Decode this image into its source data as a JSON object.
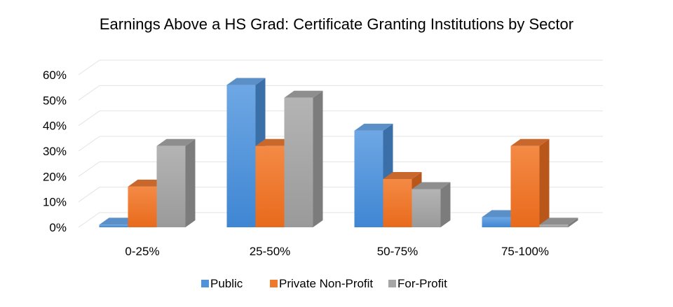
{
  "chart_data": {
    "type": "bar",
    "title": "Earnings Above a HS Grad: Certificate Granting Institutions by Sector",
    "xlabel": "",
    "ylabel": "",
    "categories": [
      "0-25%",
      "25-50%",
      "50-75%",
      "75-100%"
    ],
    "series": [
      {
        "name": "Public",
        "values": [
          1,
          56,
          38,
          4
        ]
      },
      {
        "name": "Private Non-Profit",
        "values": [
          16,
          32,
          19,
          32
        ]
      },
      {
        "name": "For-Profit",
        "values": [
          32,
          51,
          15,
          1
        ]
      }
    ],
    "ylim": [
      0,
      60
    ],
    "yticks": [
      "0%",
      "10%",
      "20%",
      "30%",
      "40%",
      "50%",
      "60%"
    ],
    "grid": true,
    "legend_position": "bottom",
    "style": "3d-clustered-column",
    "colors": {
      "Public": "#4f92d9",
      "Private Non-Profit": "#f07a2c",
      "For-Profit": "#a6a6a6"
    }
  }
}
